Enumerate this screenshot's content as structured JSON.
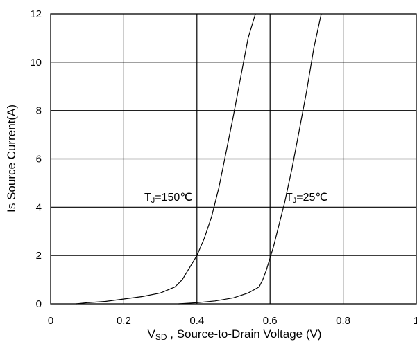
{
  "chart_data": {
    "type": "line",
    "xlabel_main": "V",
    "xlabel_sub": "SD",
    "xlabel_rest": " , Source-to-Drain Voltage (V)",
    "ylabel_main": "I",
    "ylabel_sub": "S",
    "ylabel_rest": " Source Current(A)",
    "xlim": [
      0,
      1
    ],
    "ylim": [
      0,
      12
    ],
    "grid": true,
    "x_ticks": [
      0,
      0.2,
      0.4,
      0.6,
      0.8,
      1
    ],
    "x_tick_labels": [
      "0",
      "0.2",
      "0.4",
      "0.6",
      "0.8",
      "1"
    ],
    "y_ticks": [
      0,
      2,
      4,
      6,
      8,
      10,
      12
    ],
    "y_tick_labels": [
      "0",
      "2",
      "4",
      "6",
      "8",
      "10",
      "12"
    ],
    "series": [
      {
        "label_main": "T",
        "label_sub": "J",
        "label_rest": "=150℃",
        "x": [
          0.07,
          0.1,
          0.15,
          0.2,
          0.25,
          0.3,
          0.34,
          0.36,
          0.38,
          0.4,
          0.42,
          0.44,
          0.46,
          0.48,
          0.5,
          0.52,
          0.54,
          0.56
        ],
        "y": [
          0.0,
          0.05,
          0.1,
          0.2,
          0.3,
          0.45,
          0.7,
          1.0,
          1.5,
          2.0,
          2.7,
          3.6,
          4.8,
          6.3,
          7.8,
          9.4,
          11.0,
          12.0
        ]
      },
      {
        "label_main": "T",
        "label_sub": "J",
        "label_rest": "=25℃",
        "x": [
          0.35,
          0.4,
          0.45,
          0.5,
          0.54,
          0.57,
          0.58,
          0.59,
          0.6,
          0.61,
          0.62,
          0.64,
          0.66,
          0.68,
          0.7,
          0.72,
          0.74
        ],
        "y": [
          0.0,
          0.05,
          0.12,
          0.25,
          0.45,
          0.7,
          1.0,
          1.4,
          1.9,
          2.4,
          3.0,
          4.2,
          5.6,
          7.2,
          8.8,
          10.6,
          12.0
        ]
      }
    ]
  }
}
